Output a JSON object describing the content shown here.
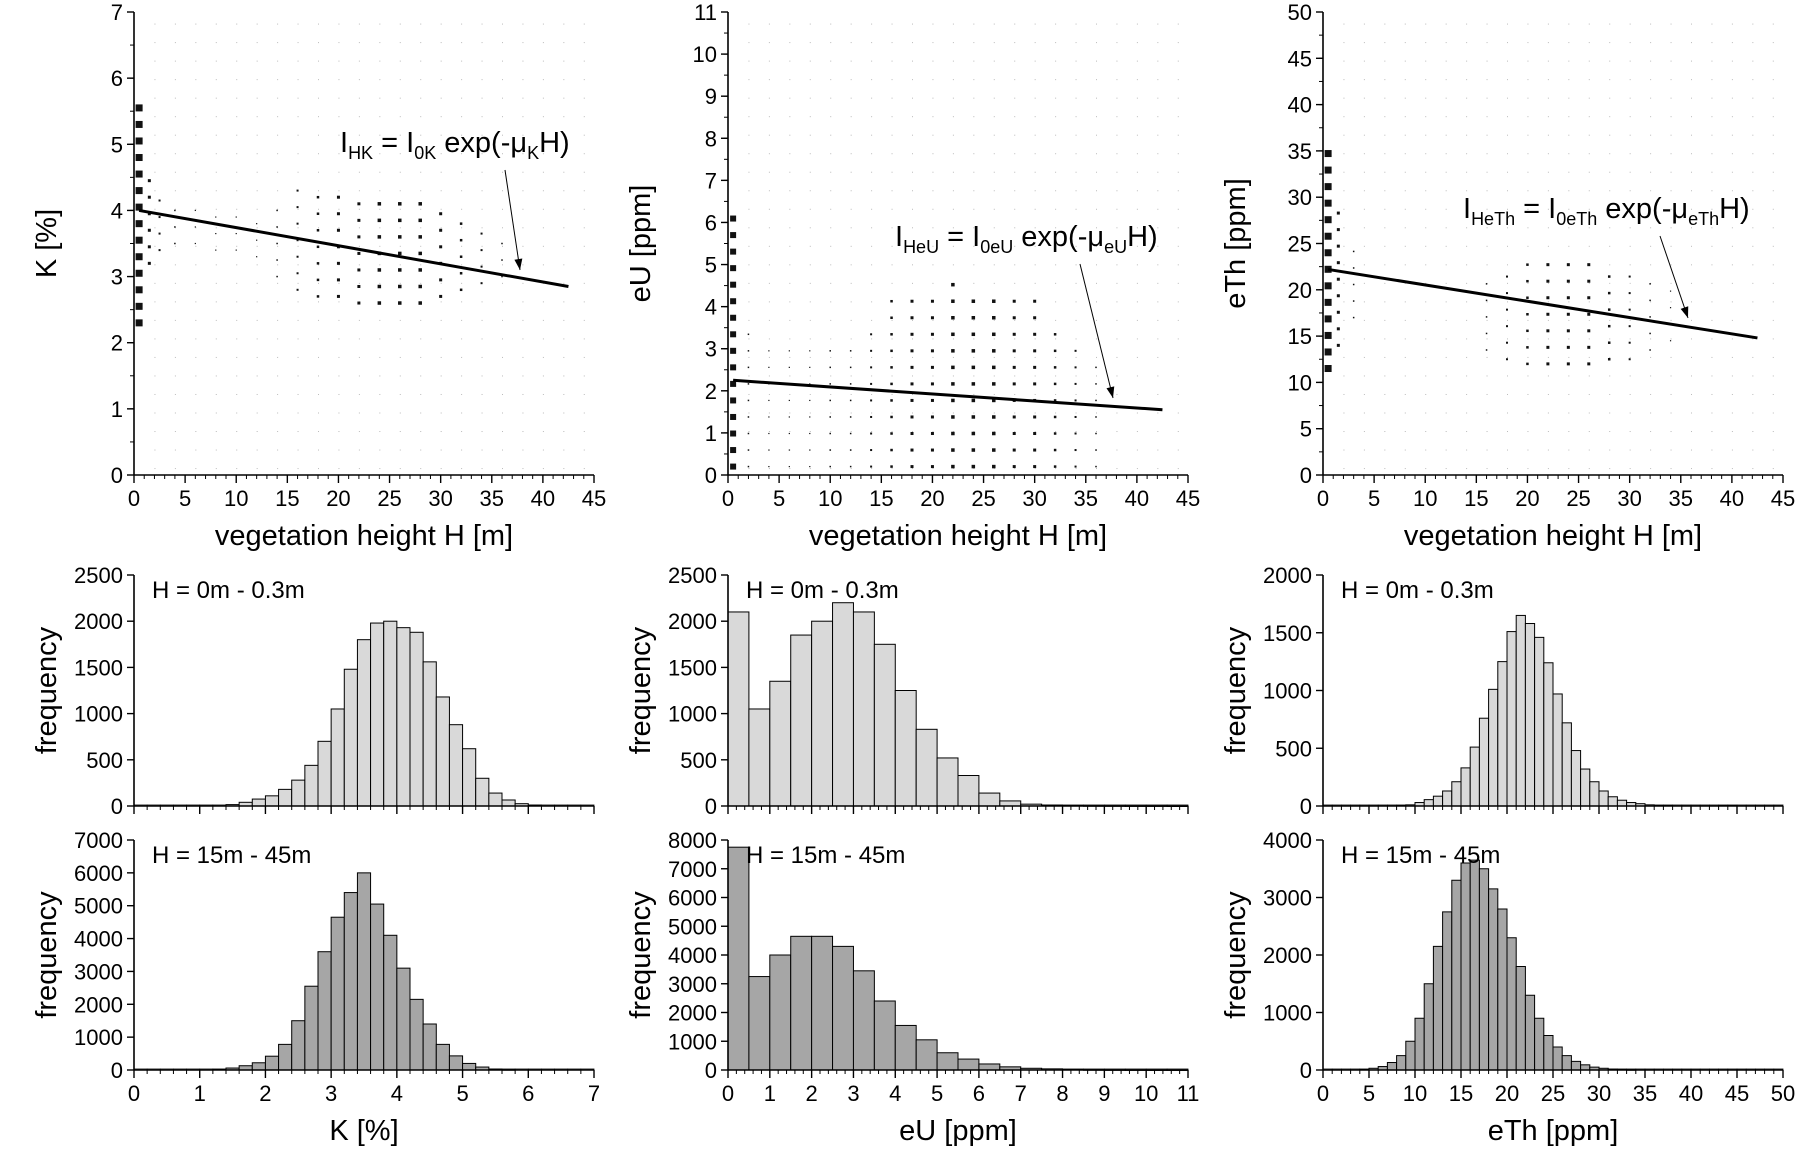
{
  "chart_data": [
    {
      "type": "scatter",
      "id": "scatter-k",
      "xlabel": "vegetation height H  [m]",
      "ylabel": "K [%]",
      "xlim": [
        0,
        45
      ],
      "ylim": [
        0,
        7
      ],
      "xticks": [
        0,
        5,
        10,
        15,
        20,
        25,
        30,
        35,
        40,
        45
      ],
      "yticks": [
        0,
        1,
        2,
        3,
        4,
        5,
        6,
        7
      ],
      "annotation": {
        "i": "I",
        "sub1": "HK",
        "mid": " = I",
        "sub2": "0K",
        "rest": " exp(-μ",
        "sub3": "K",
        "tail": "H)"
      },
      "fit_line": {
        "x": [
          0.5,
          42.5
        ],
        "y": [
          4.0,
          2.85
        ]
      },
      "density": [
        {
          "x": 0.5,
          "y_from": 2.3,
          "y_to": 5.6,
          "size": 7
        },
        {
          "x": 1.5,
          "y_from": 3.2,
          "y_to": 4.6,
          "size": 3
        },
        {
          "x": 2.5,
          "y_from": 3.4,
          "y_to": 4.3,
          "size": 2
        },
        {
          "x": 4.0,
          "y_from": 3.5,
          "y_to": 4.1,
          "size": 1.5
        },
        {
          "x": 6.0,
          "y_from": 3.5,
          "y_to": 4.0,
          "size": 1.2
        },
        {
          "x": 8.0,
          "y_from": 3.4,
          "y_to": 4.0,
          "size": 1.2
        },
        {
          "x": 10.0,
          "y_from": 3.4,
          "y_to": 3.9,
          "size": 1.2
        },
        {
          "x": 12.0,
          "y_from": 3.3,
          "y_to": 3.9,
          "size": 1.2
        },
        {
          "x": 14.0,
          "y_from": 3.0,
          "y_to": 4.1,
          "size": 1.5
        },
        {
          "x": 16.0,
          "y_from": 2.8,
          "y_to": 4.3,
          "size": 2
        },
        {
          "x": 18.0,
          "y_from": 2.7,
          "y_to": 4.3,
          "size": 2.5
        },
        {
          "x": 20.0,
          "y_from": 2.7,
          "y_to": 4.3,
          "size": 3
        },
        {
          "x": 22.0,
          "y_from": 2.6,
          "y_to": 4.3,
          "size": 3
        },
        {
          "x": 24.0,
          "y_from": 2.6,
          "y_to": 4.3,
          "size": 3.5
        },
        {
          "x": 26.0,
          "y_from": 2.6,
          "y_to": 4.2,
          "size": 3.5
        },
        {
          "x": 28.0,
          "y_from": 2.6,
          "y_to": 4.1,
          "size": 3.5
        },
        {
          "x": 30.0,
          "y_from": 2.7,
          "y_to": 4.0,
          "size": 3
        },
        {
          "x": 32.0,
          "y_from": 2.8,
          "y_to": 3.9,
          "size": 2.5
        },
        {
          "x": 34.0,
          "y_from": 2.9,
          "y_to": 3.7,
          "size": 2
        },
        {
          "x": 36.0,
          "y_from": 3.0,
          "y_to": 3.5,
          "size": 1.5
        }
      ]
    },
    {
      "type": "scatter",
      "id": "scatter-eu",
      "xlabel": "vegetation height H  [m]",
      "ylabel": "eU [ppm]",
      "xlim": [
        0,
        45
      ],
      "ylim": [
        0,
        11
      ],
      "xticks": [
        0,
        5,
        10,
        15,
        20,
        25,
        30,
        35,
        40,
        45
      ],
      "yticks": [
        0,
        1,
        2,
        3,
        4,
        5,
        6,
        7,
        8,
        9,
        10,
        11
      ],
      "annotation": {
        "i": "I",
        "sub1": "HeU",
        "mid": " = I",
        "sub2": "0eU",
        "rest": " exp(-μ",
        "sub3": "eU",
        "tail": "H)"
      },
      "fit_line": {
        "x": [
          0.5,
          42.5
        ],
        "y": [
          2.25,
          1.55
        ]
      },
      "density": [
        {
          "x": 0.5,
          "y_from": 0.2,
          "y_to": 6.2,
          "size": 6
        },
        {
          "x": 2.0,
          "y_from": 0.2,
          "y_to": 3.7,
          "size": 1.5
        },
        {
          "x": 4.0,
          "y_from": 0.2,
          "y_to": 3.2,
          "size": 1.2
        },
        {
          "x": 6.0,
          "y_from": 0.2,
          "y_to": 3.2,
          "size": 1.2
        },
        {
          "x": 8.0,
          "y_from": 0.2,
          "y_to": 3.2,
          "size": 1.2
        },
        {
          "x": 10.0,
          "y_from": 0.2,
          "y_to": 3.2,
          "size": 1.5
        },
        {
          "x": 12.0,
          "y_from": 0.2,
          "y_to": 3.2,
          "size": 1.5
        },
        {
          "x": 14.0,
          "y_from": 0.2,
          "y_to": 3.7,
          "size": 2
        },
        {
          "x": 16.0,
          "y_from": 0.2,
          "y_to": 4.2,
          "size": 2.5
        },
        {
          "x": 18.0,
          "y_from": 0.2,
          "y_to": 4.2,
          "size": 3
        },
        {
          "x": 20.0,
          "y_from": 0.2,
          "y_to": 4.2,
          "size": 3
        },
        {
          "x": 22.0,
          "y_from": 0.2,
          "y_to": 4.7,
          "size": 3.5
        },
        {
          "x": 24.0,
          "y_from": 0.2,
          "y_to": 4.2,
          "size": 3.5
        },
        {
          "x": 26.0,
          "y_from": 0.2,
          "y_to": 4.2,
          "size": 3.5
        },
        {
          "x": 28.0,
          "y_from": 0.2,
          "y_to": 4.2,
          "size": 3
        },
        {
          "x": 30.0,
          "y_from": 0.2,
          "y_to": 4.2,
          "size": 3
        },
        {
          "x": 32.0,
          "y_from": 0.2,
          "y_to": 3.7,
          "size": 2.5
        },
        {
          "x": 34.0,
          "y_from": 0.2,
          "y_to": 3.2,
          "size": 2
        },
        {
          "x": 36.0,
          "y_from": 0.2,
          "y_to": 2.7,
          "size": 1.5
        }
      ]
    },
    {
      "type": "scatter",
      "id": "scatter-eth",
      "xlabel": "vegetation height H  [m]",
      "ylabel": "eTh [ppm]",
      "xlim": [
        0,
        45
      ],
      "ylim": [
        0,
        50
      ],
      "xticks": [
        0,
        5,
        10,
        15,
        20,
        25,
        30,
        35,
        40,
        45
      ],
      "yticks": [
        0,
        5,
        10,
        15,
        20,
        25,
        30,
        35,
        40,
        45,
        50
      ],
      "annotation": {
        "i": "I",
        "sub1": "HeTh",
        "mid": " = I",
        "sub2": "0eTh",
        "rest": " exp(-μ",
        "sub3": "eTh",
        "tail": "H)"
      },
      "fit_line": {
        "x": [
          0.5,
          42.5
        ],
        "y": [
          22.2,
          14.8
        ]
      },
      "density": [
        {
          "x": 0.5,
          "y_from": 11.5,
          "y_to": 35.0,
          "size": 7
        },
        {
          "x": 1.5,
          "y_from": 14.0,
          "y_to": 30.0,
          "size": 3
        },
        {
          "x": 3.0,
          "y_from": 17.0,
          "y_to": 25.0,
          "size": 1.5
        },
        {
          "x": 16.0,
          "y_from": 13.5,
          "y_to": 22.0,
          "size": 1.5
        },
        {
          "x": 18.0,
          "y_from": 12.5,
          "y_to": 22.5,
          "size": 2
        },
        {
          "x": 20.0,
          "y_from": 12.0,
          "y_to": 23.0,
          "size": 2.5
        },
        {
          "x": 22.0,
          "y_from": 12.0,
          "y_to": 23.5,
          "size": 3
        },
        {
          "x": 24.0,
          "y_from": 12.0,
          "y_to": 23.5,
          "size": 3
        },
        {
          "x": 26.0,
          "y_from": 12.0,
          "y_to": 23.5,
          "size": 3
        },
        {
          "x": 28.0,
          "y_from": 12.5,
          "y_to": 23.0,
          "size": 2.5
        },
        {
          "x": 30.0,
          "y_from": 12.5,
          "y_to": 22.0,
          "size": 2
        },
        {
          "x": 32.0,
          "y_from": 13.5,
          "y_to": 21.0,
          "size": 1.5
        },
        {
          "x": 34.0,
          "y_from": 14.5,
          "y_to": 20.0,
          "size": 1.2
        }
      ]
    },
    {
      "type": "bar",
      "id": "hist-k-low",
      "panel_label": "H = 0m - 0.3m",
      "ylabel": "frequency",
      "xlim": [
        0,
        7
      ],
      "ylim": [
        0,
        2500
      ],
      "yticks": [
        0,
        500,
        1000,
        1500,
        2000,
        2500
      ],
      "bin_start": 1.4,
      "bin_width": 0.2,
      "values": [
        15,
        40,
        75,
        110,
        180,
        280,
        440,
        700,
        1050,
        1480,
        1800,
        1980,
        2000,
        1930,
        1880,
        1560,
        1180,
        880,
        620,
        300,
        140,
        65,
        25,
        10
      ],
      "shade": "light"
    },
    {
      "type": "bar",
      "id": "hist-eu-low",
      "panel_label": "H = 0m - 0.3m",
      "ylabel": "frequency",
      "xlim": [
        0,
        11
      ],
      "ylim": [
        0,
        2500
      ],
      "yticks": [
        0,
        500,
        1000,
        1500,
        2000,
        2500
      ],
      "bin_start": 0.0,
      "bin_width": 0.5,
      "values": [
        2100,
        1050,
        1350,
        1850,
        2000,
        2200,
        2100,
        1750,
        1250,
        830,
        520,
        330,
        140,
        55,
        20,
        10,
        5,
        3,
        2,
        1,
        1,
        0
      ],
      "shade": "light"
    },
    {
      "type": "bar",
      "id": "hist-eth-low",
      "panel_label": "H = 0m - 0.3m",
      "ylabel": "frequency",
      "xlim": [
        0,
        50
      ],
      "ylim": [
        0,
        2000
      ],
      "yticks": [
        0,
        500,
        1000,
        1500,
        2000
      ],
      "bin_start": 8.0,
      "bin_width": 1.0,
      "values": [
        5,
        10,
        30,
        55,
        85,
        130,
        210,
        330,
        510,
        760,
        1010,
        1250,
        1510,
        1650,
        1580,
        1460,
        1240,
        970,
        720,
        480,
        320,
        210,
        130,
        80,
        50,
        30,
        20,
        10,
        5,
        5
      ],
      "extra_bars": [
        {
          "x": 43.0,
          "value": 5
        },
        {
          "x": 44.0,
          "value": 5
        }
      ],
      "shade": "light"
    },
    {
      "type": "bar",
      "id": "hist-k-high",
      "panel_label": "H = 15m - 45m",
      "ylabel": "frequency",
      "xlabel": "K [%]",
      "xlim": [
        0,
        7
      ],
      "ylim": [
        0,
        7000
      ],
      "xticks": [
        0,
        1,
        2,
        3,
        4,
        5,
        6,
        7
      ],
      "yticks": [
        0,
        1000,
        2000,
        3000,
        4000,
        5000,
        6000,
        7000
      ],
      "bin_start": 1.2,
      "bin_width": 0.2,
      "values": [
        20,
        60,
        130,
        220,
        420,
        780,
        1500,
        2550,
        3600,
        4650,
        5400,
        6000,
        5050,
        4100,
        3100,
        2150,
        1400,
        780,
        430,
        200,
        90,
        30,
        10
      ],
      "shade": "dark"
    },
    {
      "type": "bar",
      "id": "hist-eu-high",
      "panel_label": "H = 15m - 45m",
      "ylabel": "frequency",
      "xlabel": "eU [ppm]",
      "xlim": [
        0,
        11
      ],
      "ylim": [
        0,
        8000
      ],
      "xticks": [
        0,
        1,
        2,
        3,
        4,
        5,
        6,
        7,
        8,
        9,
        10,
        11
      ],
      "yticks": [
        0,
        1000,
        2000,
        3000,
        4000,
        5000,
        6000,
        7000,
        8000
      ],
      "bin_start": 0.0,
      "bin_width": 0.5,
      "values": [
        7750,
        3250,
        4000,
        4650,
        4650,
        4300,
        3450,
        2400,
        1550,
        1050,
        600,
        380,
        210,
        110,
        60,
        40,
        20,
        10,
        5,
        3,
        2,
        1
      ],
      "shade": "dark"
    },
    {
      "type": "bar",
      "id": "hist-eth-high",
      "panel_label": "H = 15m - 45m",
      "ylabel": "frequency",
      "xlabel": "eTh [ppm]",
      "xlim": [
        0,
        50
      ],
      "ylim": [
        0,
        4000
      ],
      "xticks": [
        0,
        5,
        10,
        15,
        20,
        25,
        30,
        35,
        40,
        45,
        50
      ],
      "yticks": [
        0,
        1000,
        2000,
        3000,
        4000
      ],
      "bin_start": 4.0,
      "bin_width": 1.0,
      "values": [
        10,
        30,
        60,
        130,
        250,
        500,
        900,
        1500,
        2150,
        2750,
        3300,
        3600,
        3650,
        3500,
        3150,
        2800,
        2300,
        1800,
        1300,
        900,
        600,
        400,
        250,
        150,
        90,
        50,
        30,
        15,
        10,
        5
      ],
      "shade": "dark"
    }
  ]
}
